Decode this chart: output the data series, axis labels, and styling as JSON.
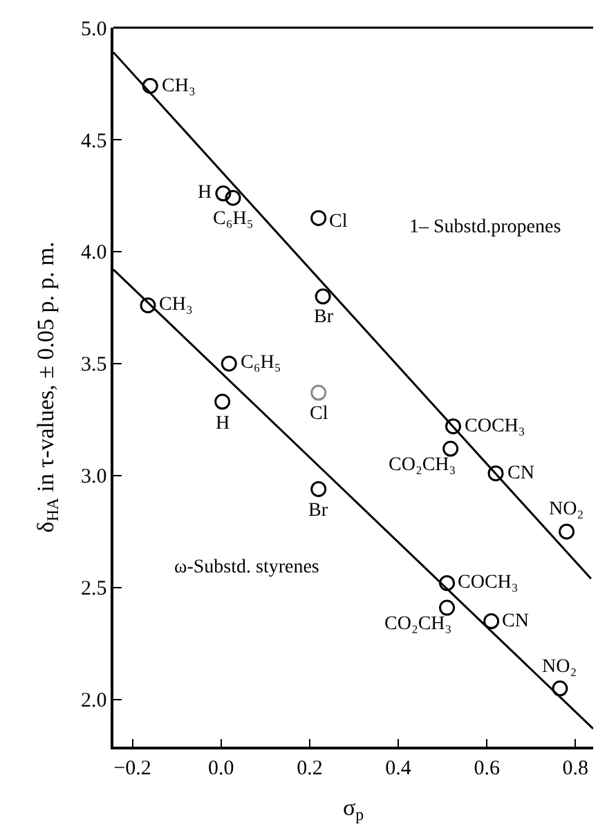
{
  "chart_data": {
    "type": "scatter",
    "xlabel": "σ$_{p}$",
    "ylabel": "δ$_{HA}$ in τ-values, ± 0.05 p. p. m.",
    "xlim": [
      -0.243,
      0.84
    ],
    "ylim": [
      1.79,
      5.0
    ],
    "xticks": [
      -0.2,
      {
        "value": 0,
        "label": "0.0"
      },
      0.2,
      0.4,
      0.6,
      0.8
    ],
    "yticks": [
      {
        "value": 2,
        "label": "2.0"
      },
      2.5,
      {
        "value": 3,
        "label": "3.0"
      },
      3.5,
      {
        "value": 4,
        "label": "4.0"
      },
      4.5,
      {
        "value": 5,
        "label": "5.0"
      }
    ],
    "marker": "circle",
    "series": [
      {
        "color": "#000000",
        "x": [
          -0.16,
          0.005,
          0.027,
          0.22,
          0.23,
          0.524,
          0.518,
          0.62,
          0.78
        ],
        "values": [
          4.74,
          4.26,
          4.24,
          4.15,
          3.8,
          3.22,
          3.12,
          3.01,
          2.75
        ]
      },
      {
        "color": "#000000",
        "x": [
          -0.165,
          0.018,
          0.003,
          0.22,
          0.51,
          0.51,
          0.61,
          0.765
        ],
        "values": [
          3.76,
          3.5,
          3.33,
          2.94,
          2.52,
          2.41,
          2.35,
          2.05
        ]
      },
      {
        "color": "#888888",
        "x": [
          0.22
        ],
        "values": [
          3.37
        ]
      },
      {
        "type": "line",
        "color": "#000000",
        "marker": "none",
        "x": [
          -0.243,
          0.835
        ],
        "values": [
          4.89,
          2.54
        ]
      },
      {
        "type": "line",
        "color": "#000000",
        "marker": "none",
        "x": [
          -0.243,
          0.84
        ],
        "values": [
          3.92,
          1.87
        ]
      }
    ],
    "annotations": [
      {
        "text": "CH₃",
        "x": -0.16,
        "y": 4.74
      },
      {
        "text": "H",
        "x": 0.005,
        "y": 4.26
      },
      {
        "text": "C₆H₅",
        "x": 0.027,
        "y": 4.24
      },
      {
        "text": "Cl",
        "x": 0.22,
        "y": 4.15
      },
      {
        "text": "Br",
        "x": 0.23,
        "y": 3.8
      },
      {
        "text": "COCH₃",
        "x": 0.524,
        "y": 3.22
      },
      {
        "text": "CO₂CH₃",
        "x": 0.518,
        "y": 3.12
      },
      {
        "text": "CN",
        "x": 0.62,
        "y": 3.01
      },
      {
        "text": "NO₂",
        "x": 0.78,
        "y": 2.75
      },
      {
        "text": "CH₃",
        "x": -0.165,
        "y": 3.76
      },
      {
        "text": "C₆H₅",
        "x": 0.018,
        "y": 3.5
      },
      {
        "text": "H",
        "x": 0.003,
        "y": 3.33
      },
      {
        "text": "Cl",
        "x": 0.22,
        "y": 3.37
      },
      {
        "text": "Br",
        "x": 0.22,
        "y": 2.94
      },
      {
        "text": "COCH₃",
        "x": 0.51,
        "y": 2.52
      },
      {
        "text": "CO₂CH₃",
        "x": 0.51,
        "y": 2.41
      },
      {
        "text": "CN",
        "x": 0.61,
        "y": 2.35
      },
      {
        "text": "NO₂",
        "x": 0.765,
        "y": 2.05
      },
      "1– Substd.propenes",
      "ω-Substd. styrenes"
    ]
  }
}
